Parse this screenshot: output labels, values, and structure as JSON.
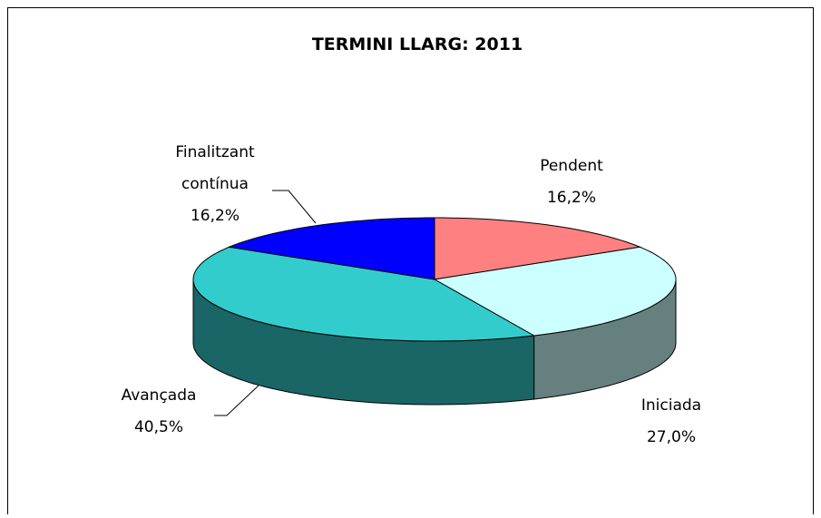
{
  "chart_data": {
    "type": "pie",
    "title": "TERMINI LLARG: 2011",
    "categories": [
      "Pendent",
      "Iniciada",
      "Avançada",
      "Finalitzant contínua"
    ],
    "values": [
      16.2,
      27.0,
      40.5,
      16.2
    ],
    "value_labels": [
      "16,2%",
      "27,0%",
      "40,5%",
      "16,2%"
    ],
    "colors": [
      "#ff8080",
      "#ccffff",
      "#33cccc",
      "#0000ff"
    ],
    "side_colors": [
      "#804040",
      "#668080",
      "#1a6666",
      "#000080"
    ]
  }
}
